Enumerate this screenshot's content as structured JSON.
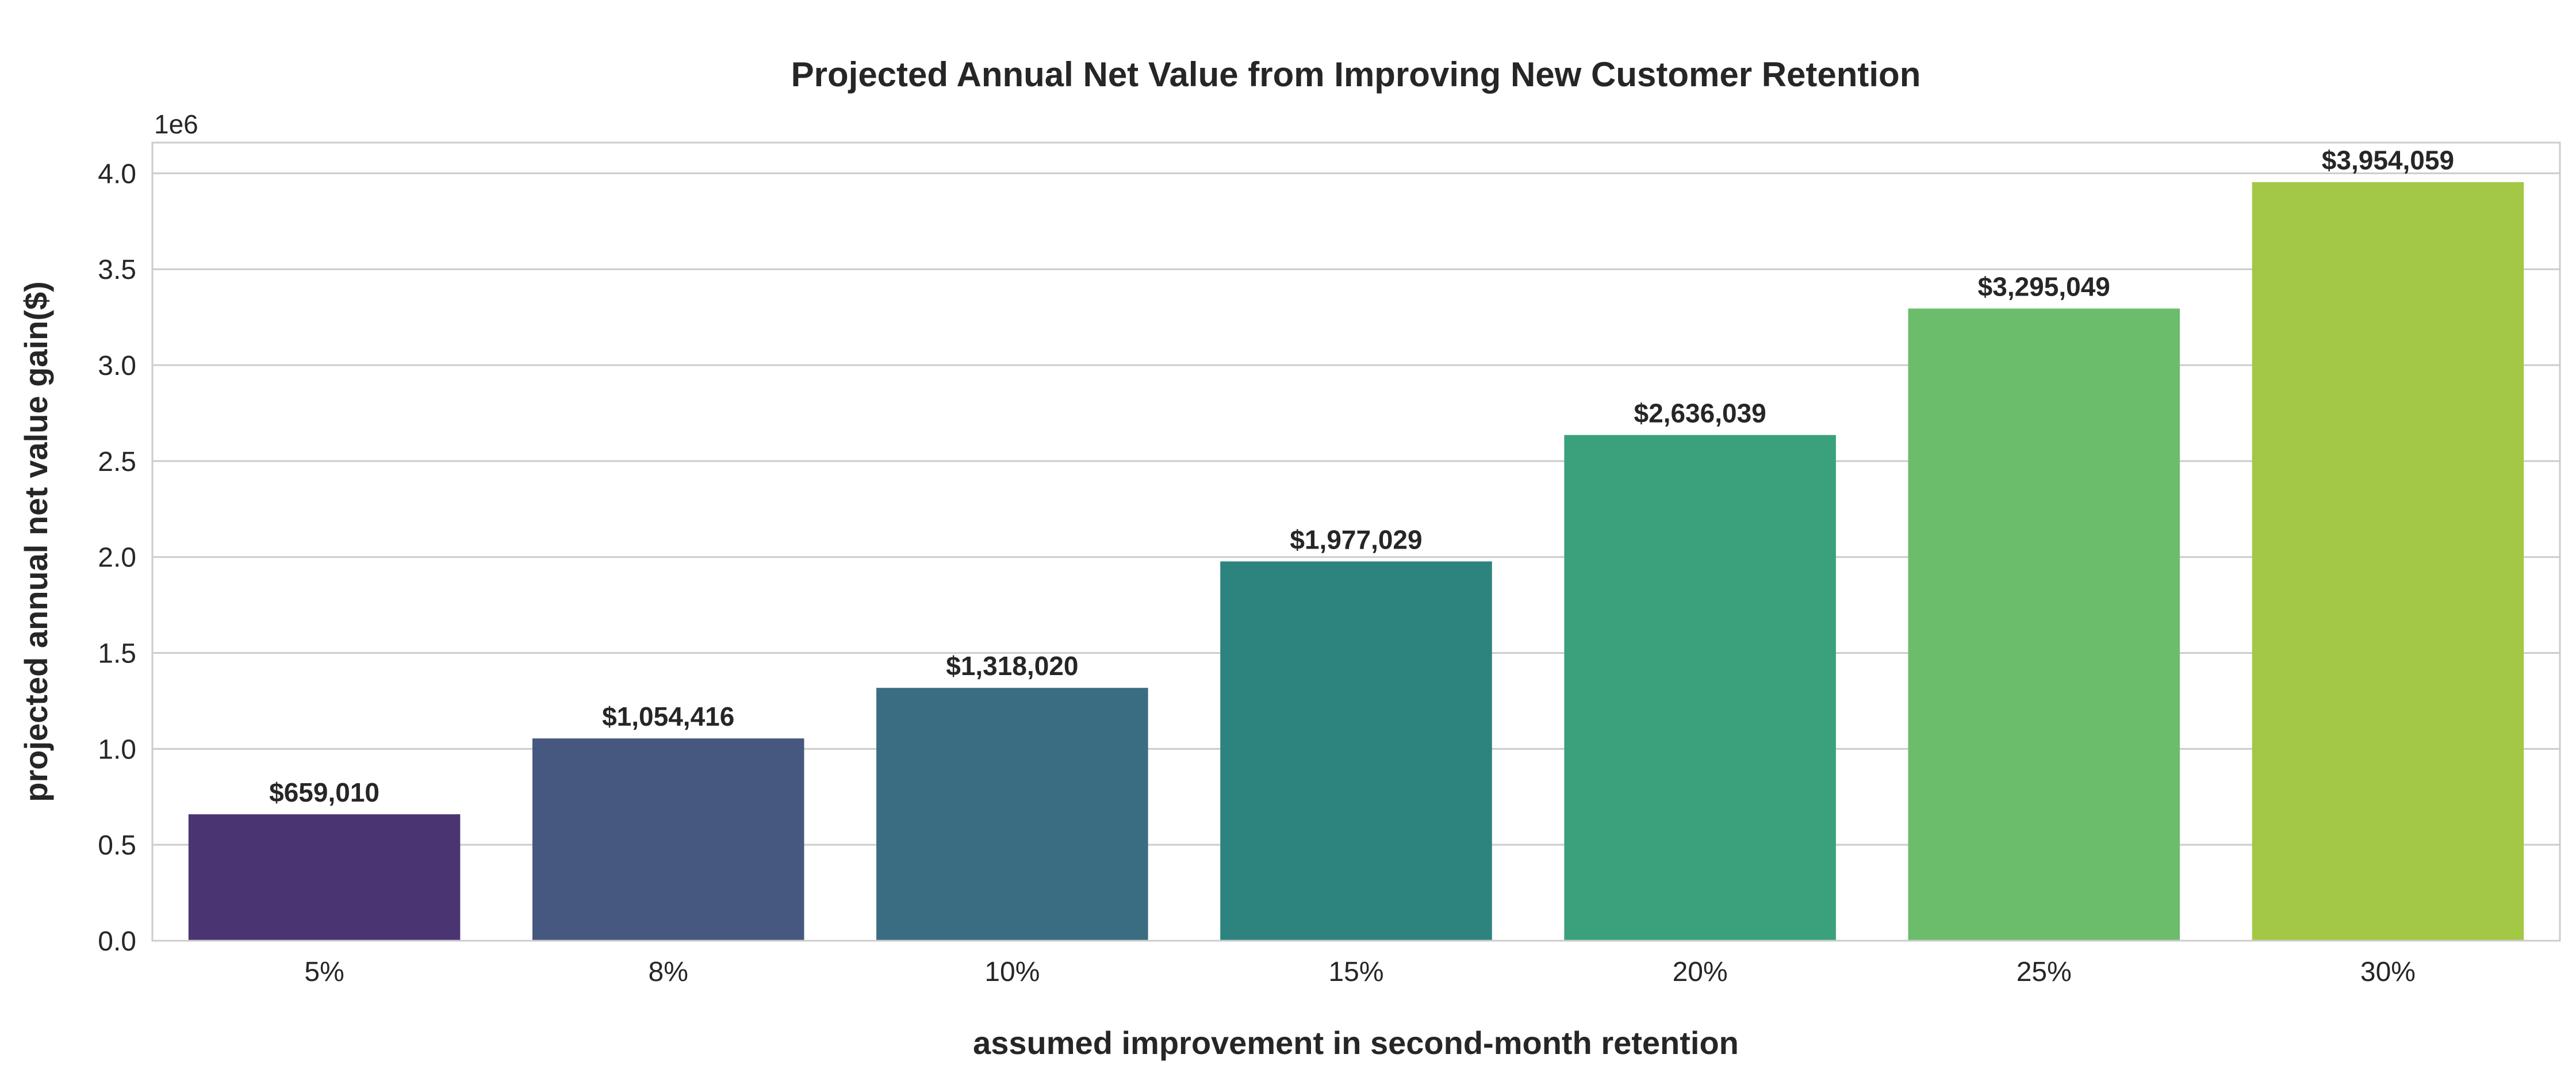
{
  "chart_data": {
    "type": "bar",
    "title": "Projected Annual Net Value from Improving New Customer Retention",
    "xlabel": "assumed improvement in second-month retention",
    "ylabel": "projected annual net value gain($)",
    "y_offset_label": "1e6",
    "categories": [
      "5%",
      "8%",
      "10%",
      "15%",
      "20%",
      "25%",
      "30%"
    ],
    "values": [
      659010,
      1054416,
      1318020,
      1977029,
      2636039,
      3295049,
      3954059
    ],
    "value_labels": [
      "$659,010",
      "$1,054,416",
      "$1,318,020",
      "$1,977,029",
      "$2,636,039",
      "$3,295,049",
      "$3,954,059"
    ],
    "bar_colors": [
      "#4a3572",
      "#46587f",
      "#3a6d82",
      "#2d847f",
      "#3ba17c",
      "#6bbc6b",
      "#a2c846"
    ],
    "ylim": [
      0,
      4160000
    ],
    "yticks": [
      0,
      500000,
      1000000,
      1500000,
      2000000,
      2500000,
      3000000,
      3500000,
      4000000
    ],
    "ytick_labels": [
      "0.0",
      "0.5",
      "1.0",
      "1.5",
      "2.0",
      "2.5",
      "3.0",
      "3.5",
      "4.0"
    ],
    "grid": "horizontal",
    "legend": "none"
  }
}
